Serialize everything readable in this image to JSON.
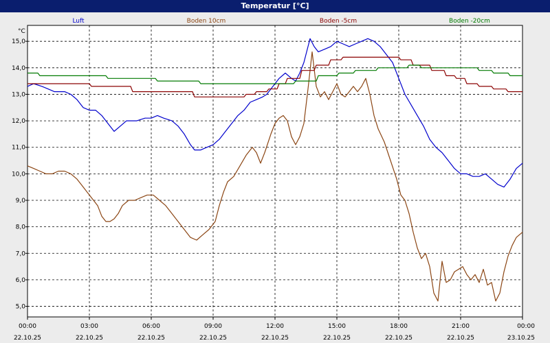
{
  "window": {
    "title": "Temperatur [°C]"
  },
  "chart_data": {
    "type": "line",
    "title": "Temperatur [°C]",
    "ylabel": "°C",
    "xlabel": "",
    "ylim": [
      4.6,
      15.6
    ],
    "xlim": [
      0,
      24
    ],
    "grid": true,
    "legend_placement": "top",
    "y_ticks": [
      "5,0",
      "6,0",
      "7,0",
      "8,0",
      "9,0",
      "10,0",
      "11,0",
      "12,0",
      "13,0",
      "14,0",
      "15,0"
    ],
    "y_tick_values": [
      5,
      6,
      7,
      8,
      9,
      10,
      11,
      12,
      13,
      14,
      15
    ],
    "x_ticks": [
      {
        "time": "00:00",
        "date": "22.10.25",
        "h": 0
      },
      {
        "time": "03:00",
        "date": "22.10.25",
        "h": 3
      },
      {
        "time": "06:00",
        "date": "22.10.25",
        "h": 6
      },
      {
        "time": "09:00",
        "date": "22.10.25",
        "h": 9
      },
      {
        "time": "12:00",
        "date": "22.10.25",
        "h": 12
      },
      {
        "time": "15:00",
        "date": "22.10.25",
        "h": 15
      },
      {
        "time": "18:00",
        "date": "22.10.25",
        "h": 18
      },
      {
        "time": "21:00",
        "date": "22.10.25",
        "h": 21
      },
      {
        "time": "00:00",
        "date": "23.10.25",
        "h": 24
      }
    ],
    "series": [
      {
        "name": "Luft",
        "color": "#0000cc",
        "points": [
          [
            0,
            13.3
          ],
          [
            0.3,
            13.4
          ],
          [
            0.7,
            13.3
          ],
          [
            1.0,
            13.2
          ],
          [
            1.3,
            13.1
          ],
          [
            1.8,
            13.1
          ],
          [
            2.1,
            13.0
          ],
          [
            2.4,
            12.8
          ],
          [
            2.7,
            12.5
          ],
          [
            3.0,
            12.4
          ],
          [
            3.3,
            12.4
          ],
          [
            3.6,
            12.2
          ],
          [
            3.9,
            11.9
          ],
          [
            4.2,
            11.6
          ],
          [
            4.5,
            11.8
          ],
          [
            4.8,
            12.0
          ],
          [
            5.3,
            12.0
          ],
          [
            5.7,
            12.1
          ],
          [
            6.0,
            12.1
          ],
          [
            6.3,
            12.2
          ],
          [
            6.6,
            12.1
          ],
          [
            7.0,
            12.0
          ],
          [
            7.3,
            11.8
          ],
          [
            7.6,
            11.5
          ],
          [
            7.9,
            11.1
          ],
          [
            8.1,
            10.9
          ],
          [
            8.4,
            10.9
          ],
          [
            8.7,
            11.0
          ],
          [
            9.0,
            11.1
          ],
          [
            9.3,
            11.3
          ],
          [
            9.6,
            11.6
          ],
          [
            9.9,
            11.9
          ],
          [
            10.2,
            12.2
          ],
          [
            10.5,
            12.4
          ],
          [
            10.8,
            12.7
          ],
          [
            11.1,
            12.8
          ],
          [
            11.4,
            12.9
          ],
          [
            11.6,
            13.0
          ],
          [
            11.8,
            13.2
          ],
          [
            12.0,
            13.4
          ],
          [
            12.2,
            13.6
          ],
          [
            12.5,
            13.8
          ],
          [
            12.8,
            13.6
          ],
          [
            13.0,
            13.5
          ],
          [
            13.2,
            13.8
          ],
          [
            13.4,
            14.2
          ],
          [
            13.6,
            14.8
          ],
          [
            13.7,
            15.1
          ],
          [
            13.9,
            14.8
          ],
          [
            14.1,
            14.6
          ],
          [
            14.4,
            14.7
          ],
          [
            14.7,
            14.8
          ],
          [
            15.0,
            15.0
          ],
          [
            15.3,
            14.9
          ],
          [
            15.6,
            14.8
          ],
          [
            15.9,
            14.9
          ],
          [
            16.2,
            15.0
          ],
          [
            16.5,
            15.1
          ],
          [
            16.8,
            15.0
          ],
          [
            17.1,
            14.8
          ],
          [
            17.4,
            14.5
          ],
          [
            17.7,
            14.2
          ],
          [
            18.0,
            13.6
          ],
          [
            18.3,
            13.0
          ],
          [
            18.6,
            12.6
          ],
          [
            18.9,
            12.2
          ],
          [
            19.2,
            11.8
          ],
          [
            19.5,
            11.3
          ],
          [
            19.8,
            11.0
          ],
          [
            20.1,
            10.8
          ],
          [
            20.4,
            10.5
          ],
          [
            20.7,
            10.2
          ],
          [
            21.0,
            10.0
          ],
          [
            21.3,
            10.0
          ],
          [
            21.6,
            9.9
          ],
          [
            21.9,
            9.9
          ],
          [
            22.2,
            10.0
          ],
          [
            22.5,
            9.8
          ],
          [
            22.8,
            9.6
          ],
          [
            23.1,
            9.5
          ],
          [
            23.4,
            9.8
          ],
          [
            23.7,
            10.2
          ],
          [
            24.0,
            10.4
          ]
        ]
      },
      {
        "name": "Boden 10cm",
        "color": "#8b4513",
        "points": [
          [
            0,
            10.3
          ],
          [
            0.3,
            10.2
          ],
          [
            0.6,
            10.1
          ],
          [
            0.9,
            10.0
          ],
          [
            1.2,
            10.0
          ],
          [
            1.5,
            10.1
          ],
          [
            1.8,
            10.1
          ],
          [
            2.1,
            10.0
          ],
          [
            2.4,
            9.8
          ],
          [
            2.6,
            9.6
          ],
          [
            2.8,
            9.4
          ],
          [
            3.0,
            9.2
          ],
          [
            3.2,
            9.0
          ],
          [
            3.4,
            8.8
          ],
          [
            3.6,
            8.4
          ],
          [
            3.8,
            8.2
          ],
          [
            4.0,
            8.2
          ],
          [
            4.2,
            8.3
          ],
          [
            4.4,
            8.5
          ],
          [
            4.6,
            8.8
          ],
          [
            4.9,
            9.0
          ],
          [
            5.2,
            9.0
          ],
          [
            5.5,
            9.1
          ],
          [
            5.8,
            9.2
          ],
          [
            6.1,
            9.2
          ],
          [
            6.4,
            9.0
          ],
          [
            6.7,
            8.8
          ],
          [
            7.0,
            8.5
          ],
          [
            7.3,
            8.2
          ],
          [
            7.6,
            7.9
          ],
          [
            7.9,
            7.6
          ],
          [
            8.2,
            7.5
          ],
          [
            8.5,
            7.7
          ],
          [
            8.8,
            7.9
          ],
          [
            9.1,
            8.2
          ],
          [
            9.3,
            8.8
          ],
          [
            9.5,
            9.3
          ],
          [
            9.7,
            9.7
          ],
          [
            10.0,
            9.9
          ],
          [
            10.3,
            10.3
          ],
          [
            10.6,
            10.7
          ],
          [
            10.9,
            11.0
          ],
          [
            11.1,
            10.8
          ],
          [
            11.3,
            10.4
          ],
          [
            11.5,
            10.8
          ],
          [
            11.8,
            11.5
          ],
          [
            12.0,
            11.9
          ],
          [
            12.2,
            12.1
          ],
          [
            12.4,
            12.2
          ],
          [
            12.6,
            12.0
          ],
          [
            12.8,
            11.4
          ],
          [
            13.0,
            11.1
          ],
          [
            13.2,
            11.4
          ],
          [
            13.4,
            11.9
          ],
          [
            13.6,
            13.2
          ],
          [
            13.8,
            14.6
          ],
          [
            14.0,
            13.3
          ],
          [
            14.2,
            12.9
          ],
          [
            14.4,
            13.1
          ],
          [
            14.6,
            12.8
          ],
          [
            14.8,
            13.1
          ],
          [
            15.0,
            13.4
          ],
          [
            15.2,
            13.0
          ],
          [
            15.4,
            12.9
          ],
          [
            15.6,
            13.1
          ],
          [
            15.8,
            13.3
          ],
          [
            16.0,
            13.1
          ],
          [
            16.2,
            13.3
          ],
          [
            16.4,
            13.6
          ],
          [
            16.6,
            13.0
          ],
          [
            16.8,
            12.2
          ],
          [
            17.0,
            11.7
          ],
          [
            17.3,
            11.2
          ],
          [
            17.6,
            10.5
          ],
          [
            17.9,
            9.8
          ],
          [
            18.1,
            9.2
          ],
          [
            18.3,
            9.0
          ],
          [
            18.5,
            8.5
          ],
          [
            18.7,
            7.8
          ],
          [
            18.9,
            7.2
          ],
          [
            19.1,
            6.8
          ],
          [
            19.3,
            7.0
          ],
          [
            19.5,
            6.5
          ],
          [
            19.7,
            5.5
          ],
          [
            19.9,
            5.2
          ],
          [
            20.1,
            6.7
          ],
          [
            20.3,
            5.9
          ],
          [
            20.5,
            6.0
          ],
          [
            20.7,
            6.3
          ],
          [
            20.9,
            6.4
          ],
          [
            21.1,
            6.5
          ],
          [
            21.3,
            6.2
          ],
          [
            21.5,
            6.0
          ],
          [
            21.7,
            6.2
          ],
          [
            21.9,
            5.9
          ],
          [
            22.1,
            6.4
          ],
          [
            22.3,
            5.8
          ],
          [
            22.5,
            5.9
          ],
          [
            22.7,
            5.2
          ],
          [
            22.9,
            5.5
          ],
          [
            23.1,
            6.3
          ],
          [
            23.3,
            6.9
          ],
          [
            23.5,
            7.3
          ],
          [
            23.7,
            7.6
          ],
          [
            24.0,
            7.8
          ]
        ]
      },
      {
        "name": "Boden -5cm",
        "color": "#8b0000",
        "points": [
          [
            0,
            13.4
          ],
          [
            3.0,
            13.4
          ],
          [
            3.1,
            13.3
          ],
          [
            5.0,
            13.3
          ],
          [
            5.1,
            13.1
          ],
          [
            8.0,
            13.1
          ],
          [
            8.1,
            12.9
          ],
          [
            10.5,
            12.9
          ],
          [
            10.6,
            13.0
          ],
          [
            11.0,
            13.0
          ],
          [
            11.1,
            13.1
          ],
          [
            11.6,
            13.1
          ],
          [
            11.7,
            13.2
          ],
          [
            12.1,
            13.2
          ],
          [
            12.2,
            13.4
          ],
          [
            12.5,
            13.4
          ],
          [
            12.6,
            13.6
          ],
          [
            13.2,
            13.6
          ],
          [
            13.3,
            13.9
          ],
          [
            13.9,
            13.9
          ],
          [
            14.0,
            14.1
          ],
          [
            14.6,
            14.1
          ],
          [
            14.7,
            14.3
          ],
          [
            15.2,
            14.3
          ],
          [
            15.3,
            14.4
          ],
          [
            18.0,
            14.4
          ],
          [
            18.1,
            14.3
          ],
          [
            18.6,
            14.3
          ],
          [
            18.7,
            14.1
          ],
          [
            19.5,
            14.1
          ],
          [
            19.6,
            13.9
          ],
          [
            20.2,
            13.9
          ],
          [
            20.3,
            13.7
          ],
          [
            20.7,
            13.7
          ],
          [
            20.8,
            13.6
          ],
          [
            21.2,
            13.6
          ],
          [
            21.3,
            13.4
          ],
          [
            21.8,
            13.4
          ],
          [
            21.9,
            13.3
          ],
          [
            22.5,
            13.3
          ],
          [
            22.6,
            13.2
          ],
          [
            23.2,
            13.2
          ],
          [
            23.3,
            13.1
          ],
          [
            24.0,
            13.1
          ]
        ]
      },
      {
        "name": "Boden -20cm",
        "color": "#007a00",
        "points": [
          [
            0,
            13.8
          ],
          [
            0.5,
            13.8
          ],
          [
            0.6,
            13.7
          ],
          [
            3.8,
            13.7
          ],
          [
            3.9,
            13.6
          ],
          [
            6.2,
            13.6
          ],
          [
            6.3,
            13.5
          ],
          [
            8.3,
            13.5
          ],
          [
            8.4,
            13.4
          ],
          [
            12.9,
            13.4
          ],
          [
            13.0,
            13.5
          ],
          [
            14.0,
            13.5
          ],
          [
            14.1,
            13.7
          ],
          [
            15.0,
            13.7
          ],
          [
            15.1,
            13.8
          ],
          [
            15.8,
            13.8
          ],
          [
            15.9,
            13.9
          ],
          [
            16.9,
            13.9
          ],
          [
            17.0,
            14.0
          ],
          [
            18.4,
            14.0
          ],
          [
            18.5,
            14.1
          ],
          [
            19.0,
            14.1
          ],
          [
            19.1,
            14.0
          ],
          [
            21.8,
            14.0
          ],
          [
            21.9,
            13.9
          ],
          [
            22.5,
            13.9
          ],
          [
            22.6,
            13.8
          ],
          [
            23.3,
            13.8
          ],
          [
            23.4,
            13.7
          ],
          [
            24.0,
            13.7
          ]
        ]
      }
    ]
  }
}
